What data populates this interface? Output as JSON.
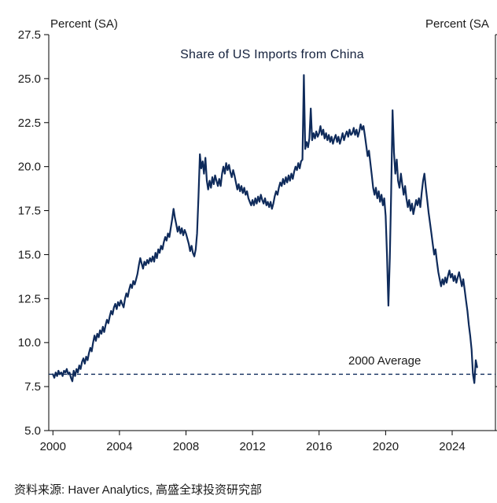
{
  "header": {
    "left_axis_unit": "Percent (SA)",
    "right_axis_unit": "Percent (SA"
  },
  "footer": {
    "source": "资料来源: Haver Analytics, 高盛全球投资研究部"
  },
  "chart_data": {
    "type": "line",
    "title": "Share of US Imports from China",
    "xlabel": "",
    "ylabel": "Percent (SA)",
    "ylim": [
      5.0,
      27.5
    ],
    "xlim": [
      1999.75,
      2026.6
    ],
    "yticks": [
      5.0,
      7.5,
      10.0,
      12.5,
      15.0,
      17.5,
      20.0,
      22.5,
      25.0,
      27.5
    ],
    "xticks": [
      2000,
      2004,
      2008,
      2012,
      2016,
      2020,
      2024
    ],
    "grid": false,
    "legend_position": "none",
    "line_color": "#0f2b5b",
    "axis_color": "#000000",
    "text_color": "#1a1a1a",
    "average_line": {
      "value": 8.2,
      "label": "2000 Average",
      "style": "dashed",
      "color": "#0f2b5b"
    },
    "series": [
      {
        "name": "Share of US Imports from China",
        "frequency": "monthly",
        "start_year": 2000,
        "values": [
          8.2,
          8.0,
          8.3,
          8.1,
          8.4,
          8.2,
          8.3,
          8.1,
          8.4,
          8.3,
          8.5,
          8.2,
          8.3,
          8.0,
          7.8,
          8.4,
          8.1,
          8.5,
          8.3,
          8.7,
          8.5,
          8.9,
          9.1,
          8.8,
          9.2,
          9.0,
          9.4,
          9.7,
          9.5,
          10.0,
          10.4,
          10.1,
          10.5,
          10.3,
          10.7,
          10.5,
          10.9,
          10.6,
          11.0,
          11.3,
          11.1,
          11.5,
          11.8,
          11.6,
          12.0,
          12.2,
          11.9,
          12.3,
          12.1,
          12.4,
          12.2,
          12.0,
          12.5,
          12.8,
          12.6,
          13.0,
          13.3,
          13.1,
          13.5,
          13.3,
          13.6,
          13.9,
          14.4,
          14.8,
          14.5,
          14.2,
          14.6,
          14.4,
          14.7,
          14.5,
          14.8,
          14.6,
          14.9,
          14.6,
          15.1,
          14.8,
          15.3,
          15.1,
          15.5,
          15.3,
          15.7,
          16.0,
          15.8,
          16.2,
          16.0,
          16.5,
          17.0,
          17.6,
          17.1,
          16.7,
          16.3,
          16.6,
          16.2,
          16.5,
          16.1,
          16.4,
          16.2,
          15.9,
          15.6,
          15.2,
          15.5,
          15.1,
          14.9,
          15.3,
          16.2,
          18.3,
          20.7,
          19.9,
          20.3,
          19.6,
          20.5,
          19.2,
          18.7,
          19.2,
          18.8,
          19.4,
          19.0,
          19.5,
          19.2,
          18.9,
          19.3,
          18.9,
          19.6,
          20.0,
          19.6,
          20.2,
          19.8,
          20.1,
          19.7,
          19.4,
          19.8,
          19.5,
          19.1,
          18.7,
          19.0,
          18.6,
          18.9,
          18.5,
          18.8,
          18.4,
          18.6,
          18.2,
          18.0,
          17.8,
          18.1,
          17.8,
          18.2,
          17.9,
          18.3,
          18.0,
          18.4,
          18.1,
          17.9,
          18.2,
          17.8,
          18.0,
          17.7,
          18.0,
          17.6,
          17.9,
          18.3,
          18.6,
          18.4,
          18.8,
          19.1,
          18.9,
          19.3,
          19.0,
          19.4,
          19.1,
          19.5,
          19.2,
          19.6,
          19.3,
          19.7,
          20.0,
          19.8,
          20.2,
          19.9,
          20.3,
          20.4,
          25.2,
          21.0,
          21.4,
          21.1,
          21.6,
          23.3,
          21.5,
          21.9,
          21.6,
          22.0,
          21.7,
          21.9,
          22.3,
          21.8,
          22.1,
          21.6,
          21.9,
          21.5,
          21.8,
          21.4,
          21.7,
          21.3,
          21.6,
          21.8,
          21.4,
          21.7,
          21.3,
          21.6,
          21.9,
          21.5,
          21.8,
          22.0,
          21.7,
          22.1,
          21.8,
          21.9,
          22.2,
          21.8,
          22.1,
          21.7,
          22.0,
          22.4,
          22.1,
          22.3,
          21.8,
          21.2,
          20.6,
          20.9,
          20.2,
          19.5,
          18.8,
          18.4,
          18.8,
          18.2,
          18.6,
          18.0,
          18.4,
          17.8,
          18.2,
          17.2,
          15.0,
          12.1,
          14.8,
          18.5,
          23.2,
          20.8,
          19.6,
          20.4,
          19.2,
          18.8,
          19.6,
          19.0,
          18.4,
          18.9,
          18.2,
          17.7,
          18.1,
          17.5,
          17.9,
          17.3,
          17.7,
          18.1,
          17.8,
          18.2,
          17.7,
          18.5,
          19.2,
          19.6,
          18.8,
          18.1,
          17.4,
          16.8,
          16.2,
          15.6,
          15.0,
          15.3,
          14.6,
          14.0,
          13.6,
          13.2,
          13.6,
          13.3,
          13.7,
          13.4,
          13.8,
          14.1,
          13.7,
          13.9,
          13.5,
          13.8,
          13.4,
          13.7,
          14.0,
          13.6,
          13.2,
          13.6,
          13.0,
          12.4,
          11.8,
          11.0,
          10.4,
          9.6,
          8.2,
          7.7,
          9.0,
          8.6
        ]
      }
    ]
  }
}
